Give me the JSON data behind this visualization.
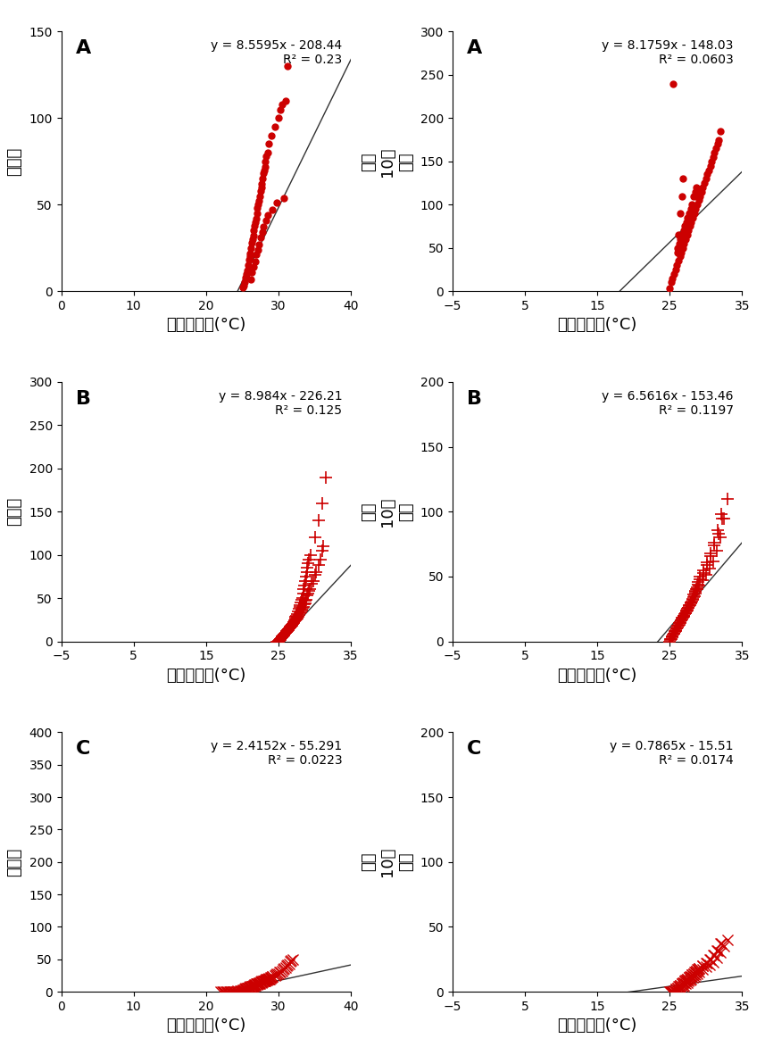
{
  "panels": [
    {
      "label": "A",
      "eq": "y = 8.5595x - 208.44",
      "r2": "R² = 0.23",
      "marker": "o",
      "xlabel": "일최고기온(°C)",
      "ylabel": "발생수",
      "xlim": [
        0,
        40
      ],
      "ylim": [
        0,
        150
      ],
      "xticks": [
        0,
        10,
        20,
        30,
        40
      ],
      "yticks": [
        0,
        50,
        100,
        150
      ],
      "slope": 8.5595,
      "intercept": -208.44,
      "x_data": [
        25.1,
        25.3,
        25.5,
        25.6,
        25.7,
        25.8,
        25.9,
        26.0,
        26.1,
        26.2,
        26.3,
        26.4,
        26.5,
        26.6,
        26.7,
        26.8,
        26.9,
        27.0,
        27.1,
        27.2,
        27.3,
        27.4,
        27.5,
        27.6,
        27.7,
        27.8,
        27.9,
        28.0,
        28.1,
        28.2,
        28.3,
        28.5,
        28.7,
        29.0,
        29.5,
        30.0,
        30.2,
        30.5,
        31.0,
        31.2,
        25.2,
        26.15,
        26.35,
        26.55,
        26.75,
        26.95,
        27.15,
        27.35,
        27.55,
        27.75,
        27.95,
        28.25,
        28.55,
        29.1,
        29.8,
        30.8
      ],
      "y_data": [
        2,
        5,
        8,
        10,
        12,
        15,
        18,
        20,
        22,
        25,
        28,
        30,
        32,
        35,
        38,
        40,
        42,
        45,
        48,
        50,
        52,
        55,
        58,
        60,
        62,
        65,
        68,
        70,
        72,
        75,
        78,
        80,
        85,
        90,
        95,
        100,
        105,
        108,
        110,
        130,
        3,
        7,
        11,
        14,
        17,
        21,
        24,
        27,
        31,
        34,
        37,
        41,
        44,
        47,
        51,
        54
      ]
    },
    {
      "label": "A",
      "eq": "y = 8.1759x - 148.03",
      "r2": "R² = 0.0603",
      "marker": "o",
      "xlabel": "일최고기온(°C)",
      "ylabel": "인구\n10만\n명당",
      "xlim": [
        -5,
        35
      ],
      "ylim": [
        0,
        300
      ],
      "xticks": [
        -5,
        5,
        15,
        25,
        35
      ],
      "yticks": [
        0,
        50,
        100,
        150,
        200,
        250,
        300
      ],
      "slope": 8.1759,
      "intercept": -148.03,
      "x_data": [
        25.0,
        25.2,
        25.4,
        25.6,
        25.8,
        26.0,
        26.2,
        26.4,
        26.6,
        26.8,
        27.0,
        27.2,
        27.4,
        27.6,
        27.8,
        28.0,
        28.2,
        28.4,
        28.6,
        28.8,
        29.0,
        29.2,
        29.4,
        29.6,
        29.8,
        30.0,
        30.2,
        30.4,
        30.6,
        30.8,
        31.0,
        31.2,
        31.4,
        31.6,
        31.8,
        32.0,
        26.1,
        26.3,
        26.5,
        26.7,
        26.9,
        27.1,
        27.3,
        27.5,
        27.7,
        27.9,
        28.1,
        28.3,
        28.5,
        28.7,
        25.5,
        26.05,
        26.25,
        26.45,
        26.65,
        26.85
      ],
      "y_data": [
        3,
        10,
        15,
        20,
        25,
        30,
        35,
        40,
        45,
        50,
        55,
        60,
        65,
        70,
        75,
        80,
        85,
        90,
        95,
        100,
        105,
        110,
        115,
        120,
        125,
        130,
        135,
        140,
        145,
        150,
        155,
        160,
        165,
        170,
        175,
        185,
        50,
        55,
        60,
        65,
        70,
        75,
        80,
        85,
        90,
        95,
        100,
        110,
        115,
        120,
        240,
        45,
        65,
        90,
        110,
        130
      ]
    },
    {
      "label": "B",
      "eq": "y = 8.984x - 226.21",
      "r2": "R² = 0.125",
      "marker": "+",
      "xlabel": "일최고기온(°C)",
      "ylabel": "발생수",
      "xlim": [
        -5,
        35
      ],
      "ylim": [
        0,
        300
      ],
      "xticks": [
        -5,
        5,
        15,
        25,
        35
      ],
      "yticks": [
        0,
        50,
        100,
        150,
        200,
        250,
        300
      ],
      "slope": 8.984,
      "intercept": -226.21,
      "x_data": [
        24.8,
        25.0,
        25.1,
        25.2,
        25.3,
        25.4,
        25.5,
        25.6,
        25.7,
        25.8,
        25.9,
        26.0,
        26.1,
        26.2,
        26.3,
        26.4,
        26.5,
        26.6,
        26.7,
        26.8,
        26.9,
        27.0,
        27.1,
        27.2,
        27.3,
        27.4,
        27.5,
        27.6,
        27.7,
        27.8,
        27.9,
        28.0,
        28.1,
        28.2,
        28.3,
        28.4,
        28.5,
        28.6,
        28.7,
        28.8,
        28.9,
        29.0,
        29.1,
        29.2,
        29.5,
        30.0,
        30.5,
        31.0,
        31.5,
        25.05,
        25.25,
        25.45,
        25.65,
        25.85,
        26.05,
        26.25,
        26.45,
        26.65,
        26.85,
        27.05,
        27.25,
        27.45,
        27.65,
        27.85,
        28.05,
        28.25,
        28.45,
        28.65,
        28.85,
        29.05,
        29.35,
        29.8,
        30.2,
        30.8,
        31.2,
        25.15,
        25.35,
        25.55,
        25.75,
        25.95,
        26.15,
        26.35,
        26.55,
        26.75,
        26.95,
        27.15,
        27.35,
        27.55,
        27.75,
        27.95,
        28.15,
        28.35,
        28.55,
        28.75,
        28.95,
        29.15,
        29.55,
        30.1,
        30.6,
        31.1
      ],
      "y_data": [
        0,
        0,
        1,
        2,
        3,
        4,
        5,
        6,
        7,
        8,
        9,
        10,
        11,
        12,
        13,
        14,
        15,
        16,
        17,
        18,
        19,
        20,
        22,
        24,
        26,
        28,
        30,
        32,
        35,
        38,
        40,
        42,
        45,
        48,
        50,
        55,
        60,
        65,
        70,
        75,
        80,
        85,
        90,
        95,
        100,
        120,
        140,
        160,
        190,
        1,
        3,
        5,
        7,
        9,
        11,
        13,
        15,
        17,
        19,
        21,
        23,
        25,
        28,
        31,
        34,
        37,
        40,
        44,
        48,
        55,
        60,
        70,
        80,
        95,
        110,
        2,
        4,
        6,
        8,
        10,
        12,
        14,
        16,
        18,
        20,
        22,
        24,
        26,
        29,
        33,
        36,
        39,
        43,
        47,
        53,
        58,
        67,
        77,
        88,
        105
      ]
    },
    {
      "label": "B",
      "eq": "y = 6.5616x - 153.46",
      "r2": "R² = 0.1197",
      "marker": "+",
      "xlabel": "일최고기온(°C)",
      "ylabel": "인구\n10만\n명당",
      "xlim": [
        -5,
        35
      ],
      "ylim": [
        0,
        200
      ],
      "xticks": [
        -5,
        5,
        15,
        25,
        35
      ],
      "yticks": [
        0,
        50,
        100,
        150,
        200
      ],
      "slope": 6.5616,
      "intercept": -153.46,
      "x_data": [
        25.0,
        25.2,
        25.4,
        25.6,
        25.8,
        26.0,
        26.2,
        26.4,
        26.6,
        26.8,
        27.0,
        27.2,
        27.4,
        27.6,
        27.8,
        28.0,
        28.2,
        28.4,
        28.6,
        28.8,
        29.0,
        29.5,
        30.0,
        30.5,
        31.0,
        31.5,
        32.0,
        32.5,
        33.0,
        25.1,
        25.3,
        25.5,
        25.7,
        25.9,
        26.1,
        26.3,
        26.5,
        26.7,
        26.9,
        27.1,
        27.3,
        27.5,
        27.7,
        27.9,
        28.1,
        28.3,
        28.5,
        28.7,
        28.9,
        29.2,
        29.7,
        30.2,
        30.7,
        31.2,
        31.7,
        32.2,
        25.15,
        25.35,
        25.55,
        25.75,
        25.95,
        26.15,
        26.35,
        26.55,
        26.75,
        26.95,
        27.15,
        27.35,
        27.55,
        27.75,
        27.95,
        28.15,
        28.35,
        28.55,
        28.75,
        28.95,
        29.15,
        29.65,
        30.15,
        30.65,
        31.15,
        31.65,
        32.15
      ],
      "y_data": [
        0,
        2,
        4,
        6,
        8,
        10,
        12,
        14,
        16,
        18,
        20,
        22,
        24,
        26,
        28,
        30,
        32,
        35,
        38,
        40,
        43,
        47,
        51,
        56,
        62,
        70,
        80,
        95,
        110,
        1,
        3,
        5,
        7,
        9,
        11,
        13,
        15,
        17,
        19,
        21,
        23,
        25,
        27,
        29,
        31,
        34,
        37,
        40,
        44,
        48,
        53,
        59,
        66,
        74,
        83,
        95,
        2,
        4,
        6,
        8,
        10,
        12,
        14,
        16,
        18,
        20,
        22,
        24,
        26,
        28,
        30,
        33,
        36,
        39,
        42,
        46,
        50,
        55,
        61,
        68,
        76,
        86,
        98
      ]
    },
    {
      "label": "C",
      "eq": "y = 2.4152x - 55.291",
      "r2": "R² = 0.0223",
      "marker": "x",
      "xlabel": "일최고기온(°C)",
      "ylabel": "발생수",
      "xlim": [
        0,
        40
      ],
      "ylim": [
        0,
        400
      ],
      "xticks": [
        0,
        10,
        20,
        30,
        40
      ],
      "yticks": [
        0,
        50,
        100,
        150,
        200,
        250,
        300,
        350,
        400
      ],
      "slope": 2.4152,
      "intercept": -55.291,
      "x_data": [
        22,
        22.5,
        23,
        23.5,
        24,
        24.5,
        25,
        25.2,
        25.4,
        25.6,
        25.8,
        26.0,
        26.2,
        26.4,
        26.6,
        26.8,
        27.0,
        27.2,
        27.4,
        27.6,
        27.8,
        28.0,
        28.2,
        28.4,
        28.6,
        28.8,
        29.0,
        29.5,
        30.0,
        30.5,
        31.0,
        31.5,
        32.0,
        22.2,
        22.7,
        23.2,
        23.7,
        24.2,
        24.7,
        25.05,
        25.25,
        25.45,
        25.65,
        25.85,
        26.05,
        26.25,
        26.45,
        26.65,
        26.85,
        27.05,
        27.25,
        27.45,
        27.65,
        27.85,
        28.05,
        28.25,
        28.45,
        28.65,
        28.85,
        29.1,
        29.6,
        30.1,
        30.6,
        31.1,
        31.6,
        22.3,
        22.8,
        23.3,
        23.8,
        24.3,
        24.8,
        25.1,
        25.3,
        25.5,
        25.7,
        25.9,
        26.1,
        26.3,
        26.5,
        26.7,
        26.9,
        27.1,
        27.3,
        27.5,
        27.7,
        27.9,
        28.1,
        28.3,
        28.5,
        28.7,
        28.9,
        29.2,
        29.7,
        30.2,
        30.7,
        31.2,
        31.7
      ],
      "y_data": [
        0,
        0,
        0,
        0,
        0,
        0,
        1,
        2,
        3,
        4,
        5,
        6,
        7,
        8,
        9,
        10,
        11,
        12,
        13,
        14,
        15,
        16,
        17,
        18,
        19,
        20,
        22,
        25,
        28,
        32,
        37,
        43,
        50,
        0,
        0,
        0,
        0,
        0,
        1,
        2,
        3,
        4,
        5,
        6,
        7,
        8,
        9,
        10,
        11,
        12,
        13,
        14,
        15,
        16,
        17,
        18,
        19,
        20,
        21,
        23,
        26,
        30,
        35,
        40,
        47,
        0,
        0,
        0,
        0,
        1,
        2,
        3,
        4,
        5,
        6,
        7,
        8,
        9,
        10,
        11,
        12,
        13,
        14,
        15,
        16,
        17,
        18,
        19,
        20,
        21,
        22,
        24,
        27,
        31,
        36,
        41,
        48
      ]
    },
    {
      "label": "C",
      "eq": "y = 0.7865x - 15.51",
      "r2": "R² = 0.0174",
      "marker": "x",
      "xlabel": "일최고기온(°C)",
      "ylabel": "인구\n10만\n명당",
      "xlim": [
        -5,
        35
      ],
      "ylim": [
        0,
        200
      ],
      "xticks": [
        -5,
        5,
        15,
        25,
        35
      ],
      "yticks": [
        0,
        50,
        100,
        150,
        200
      ],
      "slope": 0.7865,
      "intercept": -15.51,
      "x_data": [
        25,
        25.5,
        26,
        26.2,
        26.4,
        26.6,
        26.8,
        27.0,
        27.2,
        27.4,
        27.6,
        27.8,
        28.0,
        28.2,
        28.4,
        28.6,
        28.8,
        29.0,
        29.5,
        30.0,
        30.5,
        31.0,
        31.5,
        32.0,
        32.5,
        33.0,
        25.1,
        25.3,
        25.7,
        25.9,
        26.1,
        26.3,
        26.5,
        26.7,
        26.9,
        27.1,
        27.3,
        27.5,
        27.7,
        27.9,
        28.1,
        28.3,
        28.5,
        28.7,
        28.9,
        29.1,
        29.6,
        30.1,
        30.6,
        31.1,
        31.6,
        32.1,
        25.2,
        25.4,
        25.6,
        25.8,
        26.05,
        26.25,
        26.45,
        26.65,
        26.85,
        27.05,
        27.25,
        27.45,
        27.65,
        27.85,
        28.05,
        28.25,
        28.45,
        28.65,
        28.85,
        29.05,
        29.55,
        30.05,
        30.55,
        31.05,
        31.55,
        32.05
      ],
      "y_data": [
        0,
        0,
        0,
        1,
        2,
        3,
        4,
        5,
        6,
        7,
        8,
        9,
        10,
        11,
        12,
        13,
        14,
        15,
        17,
        19,
        21,
        23,
        26,
        30,
        35,
        40,
        0,
        0,
        1,
        2,
        3,
        4,
        5,
        6,
        7,
        8,
        9,
        10,
        11,
        12,
        13,
        14,
        15,
        16,
        17,
        18,
        20,
        22,
        25,
        28,
        32,
        37,
        0,
        0,
        1,
        2,
        3,
        4,
        5,
        6,
        7,
        8,
        9,
        10,
        11,
        12,
        13,
        14,
        15,
        16,
        17,
        18,
        20,
        22,
        25,
        28,
        32,
        37
      ]
    }
  ],
  "color": "#cc0000",
  "trendline_color": "#333333",
  "marker_size_circle": 5,
  "marker_size_plus": 6,
  "marker_size_x": 5,
  "label_fontsize": 13,
  "tick_fontsize": 10,
  "eq_fontsize": 10,
  "panel_label_fontsize": 16
}
